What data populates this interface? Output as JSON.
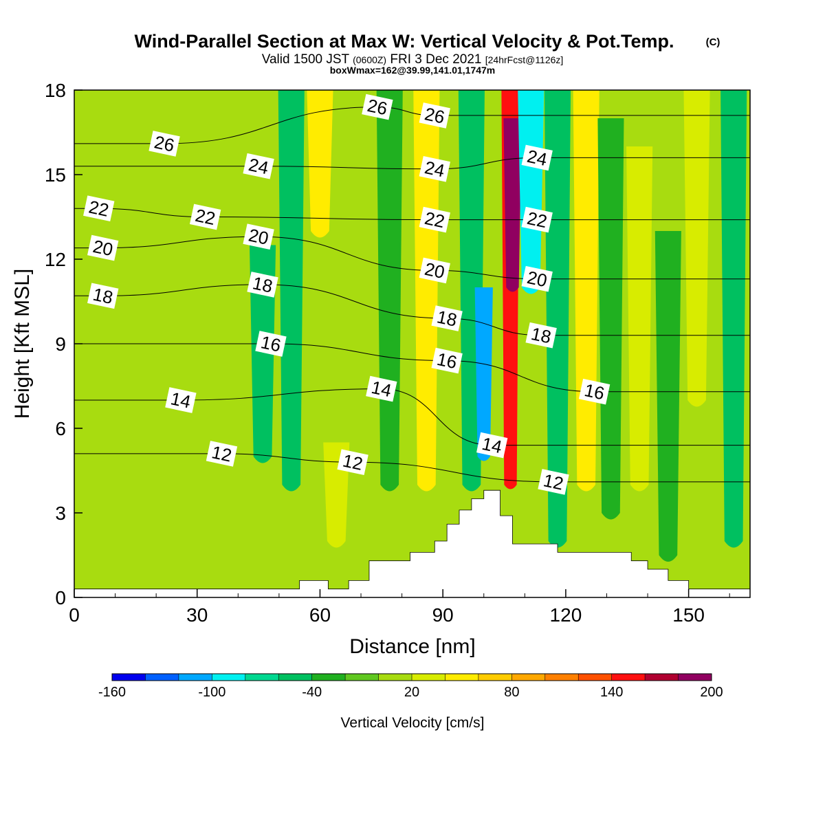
{
  "header": {
    "title_main": "Wind-Parallel Section at Max W: Vertical Velocity & Pot.Temp.",
    "title_mark": "(C)",
    "valid_a": "Valid 1500 JST",
    "valid_b": "(0600Z)",
    "valid_c": "FRI 3 Dec 2021",
    "valid_d": "[24hrFcst@1126z]",
    "box_line": "boxWmax=162@39.99,141.01,1747m"
  },
  "chart_data": {
    "type": "heatmap",
    "title": "Wind-Parallel Section at Max W: Vertical Velocity & Pot.Temp.",
    "xlabel": "Distance [nm]",
    "ylabel": "Height [Kft MSL]",
    "xlim": [
      0,
      165
    ],
    "ylim": [
      0,
      18
    ],
    "x_ticks": [
      0,
      30,
      60,
      90,
      120,
      150
    ],
    "y_ticks": [
      0,
      3,
      6,
      9,
      12,
      15,
      18
    ],
    "colorbar": {
      "label": "Vertical Velocity [cm/s]",
      "levels": [
        -160,
        -140,
        -120,
        -100,
        -80,
        -60,
        -40,
        -20,
        0,
        20,
        40,
        60,
        80,
        100,
        120,
        140,
        160,
        180,
        200
      ],
      "tick_labels": [
        "-160",
        "-100",
        "-40",
        "20",
        "80",
        "140",
        "200"
      ],
      "colors": [
        "#0000ee",
        "#0060ff",
        "#00a8ff",
        "#00f0f0",
        "#00d890",
        "#00c060",
        "#20b020",
        "#60c820",
        "#a8dc10",
        "#d8ec00",
        "#ffec00",
        "#ffcc00",
        "#ffa800",
        "#ff8000",
        "#ff5000",
        "#ff1010",
        "#b00030",
        "#900060",
        "#600090"
      ]
    },
    "updrafts": [
      {
        "x": 46,
        "y_bottom": 5,
        "y_top": 12.5,
        "w": -45
      },
      {
        "x": 53,
        "y_bottom": 4,
        "y_top": 18,
        "w": -45
      },
      {
        "x": 64,
        "y_bottom": 2,
        "y_top": 5.5,
        "w": 35
      },
      {
        "x": 60,
        "y_bottom": 13,
        "y_top": 18,
        "w": 45
      },
      {
        "x": 77,
        "y_bottom": 4,
        "y_top": 18,
        "w": -40
      },
      {
        "x": 86,
        "y_bottom": 4,
        "y_top": 18,
        "w": 40
      },
      {
        "x": 97,
        "y_bottom": 4,
        "y_top": 18,
        "w": -60
      },
      {
        "x": 100,
        "y_bottom": 5,
        "y_top": 11,
        "w": -120
      },
      {
        "x": 106.5,
        "y_bottom": 4,
        "y_top": 18,
        "w": 150
      },
      {
        "x": 107,
        "y_bottom": 11,
        "y_top": 17,
        "w": 190
      },
      {
        "x": 111.5,
        "y_bottom": 11,
        "y_top": 18,
        "w": -90
      },
      {
        "x": 118,
        "y_bottom": 2,
        "y_top": 18,
        "w": -45
      },
      {
        "x": 125,
        "y_bottom": 4,
        "y_top": 18,
        "w": 45
      },
      {
        "x": 131,
        "y_bottom": 3,
        "y_top": 17,
        "w": -40
      },
      {
        "x": 138,
        "y_bottom": 4,
        "y_top": 16,
        "w": 35
      },
      {
        "x": 145,
        "y_bottom": 1.5,
        "y_top": 13,
        "w": -40
      },
      {
        "x": 152,
        "y_bottom": 7,
        "y_top": 18,
        "w": 35
      },
      {
        "x": 161,
        "y_bottom": 2,
        "y_top": 18,
        "w": -45
      }
    ],
    "terrain": {
      "x": [
        0,
        55,
        55,
        57,
        57,
        62,
        62,
        67,
        67,
        72,
        72,
        82,
        82,
        85,
        85,
        88,
        88,
        91,
        91,
        94,
        94,
        97,
        97,
        100,
        100,
        104,
        104,
        107,
        107,
        118,
        118,
        136,
        136,
        140,
        140,
        145,
        145,
        150,
        150,
        165
      ],
      "ht": [
        0.3,
        0.3,
        0.6,
        0.6,
        0.6,
        0.6,
        0.3,
        0.3,
        0.6,
        0.6,
        1.3,
        1.3,
        1.6,
        1.6,
        1.6,
        1.6,
        2.0,
        2.0,
        2.6,
        2.6,
        3.1,
        3.1,
        3.5,
        3.5,
        3.8,
        3.8,
        2.9,
        2.9,
        1.9,
        1.9,
        1.6,
        1.6,
        1.3,
        1.3,
        1.0,
        1.0,
        0.6,
        0.6,
        0.3,
        0.3
      ]
    },
    "theta_contours": [
      {
        "level": 12,
        "label": "12",
        "label_pos": [
          [
            36,
            5.1
          ],
          [
            68,
            4.8
          ],
          [
            117,
            4.1
          ]
        ]
      },
      {
        "level": 14,
        "label": "14",
        "label_pos": [
          [
            26,
            7.0
          ],
          [
            75,
            7.4
          ],
          [
            102,
            5.4
          ]
        ]
      },
      {
        "level": 16,
        "label": "16",
        "label_pos": [
          [
            48,
            9.0
          ],
          [
            91,
            8.4
          ],
          [
            127,
            7.3
          ]
        ]
      },
      {
        "level": 18,
        "label": "18",
        "label_pos": [
          [
            7,
            10.7
          ],
          [
            46,
            11.1
          ],
          [
            91,
            9.9
          ],
          [
            114,
            9.3
          ]
        ]
      },
      {
        "level": 20,
        "label": "20",
        "label_pos": [
          [
            7,
            12.4
          ],
          [
            45,
            12.8
          ],
          [
            88,
            11.6
          ],
          [
            113,
            11.3
          ]
        ]
      },
      {
        "level": 22,
        "label": "22",
        "label_pos": [
          [
            6,
            13.8
          ],
          [
            32,
            13.5
          ],
          [
            88,
            13.4
          ],
          [
            113,
            13.4
          ]
        ]
      },
      {
        "level": 24,
        "label": "24",
        "label_pos": [
          [
            45,
            15.3
          ],
          [
            88,
            15.2
          ],
          [
            113,
            15.6
          ]
        ]
      },
      {
        "level": 26,
        "label": "26",
        "label_pos": [
          [
            22,
            16.1
          ],
          [
            74,
            17.4
          ],
          [
            88,
            17.1
          ]
        ]
      }
    ]
  }
}
